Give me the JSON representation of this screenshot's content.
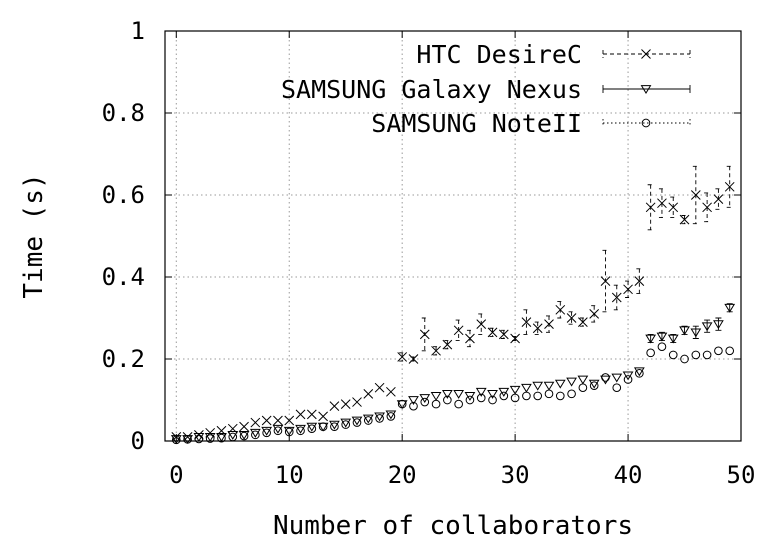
{
  "chart_data": {
    "type": "scatter",
    "title": "",
    "xlabel": "Number of collaborators",
    "ylabel": "Time (s)",
    "xlim": [
      -1,
      50
    ],
    "ylim": [
      0,
      1
    ],
    "x_ticks": [
      "0",
      "10",
      "20",
      "30",
      "40",
      "50"
    ],
    "y_ticks": [
      "0",
      "0.2",
      "0.4",
      "0.6",
      "0.8",
      "1"
    ],
    "grid": true,
    "legend_position": "top-right",
    "series": [
      {
        "name": "HTC DesireC",
        "marker": "x",
        "line_style": "dashed",
        "x": [
          0,
          1,
          2,
          3,
          4,
          5,
          6,
          7,
          8,
          9,
          10,
          11,
          12,
          13,
          14,
          15,
          16,
          17,
          18,
          19,
          20,
          21,
          22,
          23,
          24,
          25,
          26,
          27,
          28,
          29,
          30,
          31,
          32,
          33,
          34,
          35,
          36,
          37,
          38,
          39,
          40,
          41,
          42,
          43,
          44,
          45,
          46,
          47,
          48,
          49
        ],
        "y": [
          0.01,
          0.01,
          0.015,
          0.02,
          0.025,
          0.03,
          0.035,
          0.045,
          0.05,
          0.05,
          0.05,
          0.065,
          0.065,
          0.06,
          0.085,
          0.09,
          0.095,
          0.115,
          0.13,
          0.12,
          0.205,
          0.2,
          0.26,
          0.22,
          0.235,
          0.27,
          0.25,
          0.285,
          0.265,
          0.26,
          0.25,
          0.29,
          0.275,
          0.285,
          0.32,
          0.3,
          0.29,
          0.31,
          0.39,
          0.35,
          0.37,
          0.39,
          0.57,
          0.58,
          0.57,
          0.54,
          0.6,
          0.57,
          0.59,
          0.62
        ],
        "err": [
          0,
          0,
          0,
          0,
          0,
          0,
          0,
          0,
          0,
          0,
          0,
          0,
          0,
          0,
          0,
          0,
          0,
          0,
          0,
          0,
          0.01,
          0.005,
          0.04,
          0.01,
          0.01,
          0.025,
          0.02,
          0.025,
          0.01,
          0.01,
          0.005,
          0.03,
          0.015,
          0.02,
          0.02,
          0.015,
          0.01,
          0.02,
          0.075,
          0.03,
          0.02,
          0.03,
          0.055,
          0.035,
          0.025,
          0.01,
          0.07,
          0.035,
          0.025,
          0.05
        ]
      },
      {
        "name": "SAMSUNG Galaxy Nexus",
        "marker": "triangle-down",
        "line_style": "solid",
        "x": [
          0,
          1,
          2,
          3,
          4,
          5,
          6,
          7,
          8,
          9,
          10,
          11,
          12,
          13,
          14,
          15,
          16,
          17,
          18,
          19,
          20,
          21,
          22,
          23,
          24,
          25,
          26,
          27,
          28,
          29,
          30,
          31,
          32,
          33,
          34,
          35,
          36,
          37,
          38,
          39,
          40,
          41,
          42,
          43,
          44,
          45,
          46,
          47,
          48,
          49
        ],
        "y": [
          0.005,
          0.005,
          0.01,
          0.01,
          0.01,
          0.015,
          0.015,
          0.02,
          0.025,
          0.03,
          0.025,
          0.03,
          0.035,
          0.035,
          0.04,
          0.045,
          0.05,
          0.055,
          0.06,
          0.065,
          0.09,
          0.1,
          0.105,
          0.11,
          0.115,
          0.115,
          0.11,
          0.12,
          0.115,
          0.12,
          0.125,
          0.13,
          0.135,
          0.135,
          0.14,
          0.145,
          0.15,
          0.14,
          0.15,
          0.155,
          0.16,
          0.17,
          0.25,
          0.255,
          0.25,
          0.27,
          0.265,
          0.28,
          0.285,
          0.325
        ],
        "err": [
          0,
          0,
          0,
          0,
          0,
          0,
          0,
          0,
          0,
          0,
          0,
          0,
          0,
          0,
          0,
          0,
          0,
          0,
          0,
          0,
          0,
          0,
          0,
          0,
          0,
          0,
          0,
          0,
          0,
          0,
          0,
          0,
          0,
          0,
          0,
          0,
          0,
          0,
          0,
          0,
          0,
          0,
          0.01,
          0.01,
          0.01,
          0.01,
          0.015,
          0.015,
          0.015,
          0.01
        ]
      },
      {
        "name": "SAMSUNG NoteII",
        "marker": "circle",
        "line_style": "dotted",
        "x": [
          0,
          1,
          2,
          3,
          4,
          5,
          6,
          7,
          8,
          9,
          10,
          11,
          12,
          13,
          14,
          15,
          16,
          17,
          18,
          19,
          20,
          21,
          22,
          23,
          24,
          25,
          26,
          27,
          28,
          29,
          30,
          31,
          32,
          33,
          34,
          35,
          36,
          37,
          38,
          39,
          40,
          41,
          42,
          43,
          44,
          45,
          46,
          47,
          48,
          49
        ],
        "y": [
          0.003,
          0.004,
          0.005,
          0.006,
          0.007,
          0.01,
          0.012,
          0.015,
          0.02,
          0.025,
          0.022,
          0.025,
          0.03,
          0.035,
          0.035,
          0.04,
          0.045,
          0.05,
          0.055,
          0.06,
          0.09,
          0.085,
          0.095,
          0.09,
          0.1,
          0.09,
          0.1,
          0.105,
          0.1,
          0.11,
          0.105,
          0.11,
          0.11,
          0.115,
          0.11,
          0.115,
          0.13,
          0.135,
          0.155,
          0.13,
          0.15,
          0.165,
          0.215,
          0.23,
          0.21,
          0.2,
          0.21,
          0.21,
          0.22,
          0.22
        ],
        "err": [
          0,
          0,
          0,
          0,
          0,
          0,
          0,
          0,
          0,
          0,
          0,
          0,
          0,
          0,
          0,
          0,
          0,
          0,
          0,
          0,
          0,
          0,
          0,
          0,
          0,
          0,
          0,
          0,
          0,
          0,
          0,
          0,
          0,
          0,
          0,
          0,
          0,
          0,
          0,
          0,
          0,
          0,
          0,
          0,
          0,
          0,
          0,
          0,
          0,
          0
        ]
      }
    ]
  }
}
